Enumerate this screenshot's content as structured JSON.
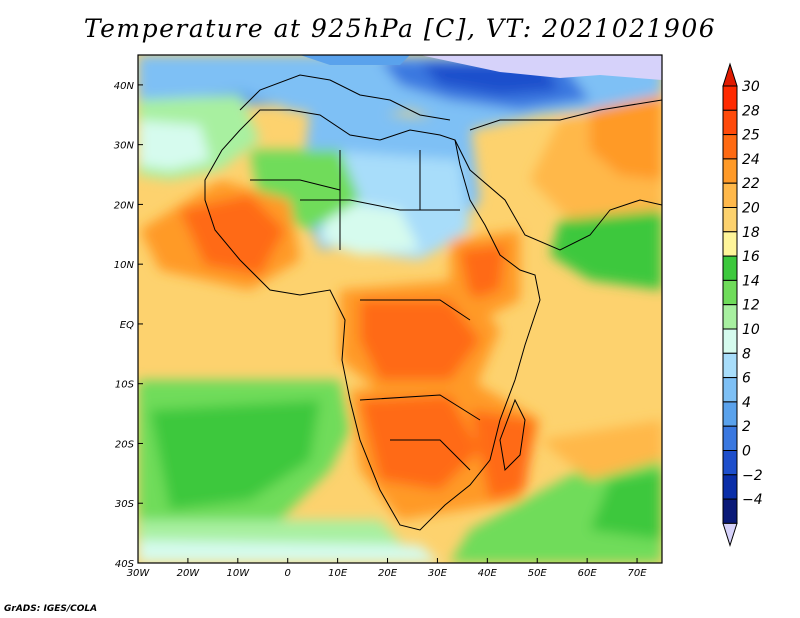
{
  "title": "Temperature at 925hPa [C], VT: 2021021906",
  "footer": "GrADS: IGES/COLA",
  "map": {
    "lon_range": [
      -30,
      75
    ],
    "lat_range": [
      -40,
      45
    ],
    "lon_ticks": [
      {
        "value": -30,
        "label": "30W"
      },
      {
        "value": -20,
        "label": "20W"
      },
      {
        "value": -10,
        "label": "10W"
      },
      {
        "value": 0,
        "label": "0"
      },
      {
        "value": 10,
        "label": "10E"
      },
      {
        "value": 20,
        "label": "20E"
      },
      {
        "value": 30,
        "label": "30E"
      },
      {
        "value": 40,
        "label": "40E"
      },
      {
        "value": 50,
        "label": "50E"
      },
      {
        "value": 60,
        "label": "60E"
      },
      {
        "value": 70,
        "label": "70E"
      }
    ],
    "lat_ticks": [
      {
        "value": 40,
        "label": "40N"
      },
      {
        "value": 30,
        "label": "30N"
      },
      {
        "value": 20,
        "label": "20N"
      },
      {
        "value": 10,
        "label": "10N"
      },
      {
        "value": 0,
        "label": "EQ"
      },
      {
        "value": -10,
        "label": "10S"
      },
      {
        "value": -20,
        "label": "20S"
      },
      {
        "value": -30,
        "label": "30S"
      },
      {
        "value": -40,
        "label": "40S"
      }
    ]
  },
  "colorbar": {
    "levels": [
      {
        "label": "30",
        "color": "#ff2a00"
      },
      {
        "label": "28",
        "color": "#ff4a0a"
      },
      {
        "label": "25",
        "color": "#ff6a12"
      },
      {
        "label": "24",
        "color": "#ff9a28"
      },
      {
        "label": "22",
        "color": "#ffb84a"
      },
      {
        "label": "20",
        "color": "#fdd26e"
      },
      {
        "label": "18",
        "color": "#fff59a"
      },
      {
        "label": "16",
        "color": "#3cc83c"
      },
      {
        "label": "14",
        "color": "#6fdc5a"
      },
      {
        "label": "12",
        "color": "#a8f0a0"
      },
      {
        "label": "10",
        "color": "#d6fbee"
      },
      {
        "label": "8",
        "color": "#a8ddfa"
      },
      {
        "label": "6",
        "color": "#7ec0f5"
      },
      {
        "label": "4",
        "color": "#5aa2ec"
      },
      {
        "label": "2",
        "color": "#3a78e0"
      },
      {
        "label": "0",
        "color": "#1e4fcc"
      },
      {
        "label": "−2",
        "color": "#0a2ea8"
      },
      {
        "label": "−4",
        "color": "#0a1a78"
      }
    ],
    "top_triangle_color": "#e01a00",
    "bottom_triangle_color": "#d6d2fa"
  },
  "colors": {
    "ocean_base": "#fdd26e",
    "cold_north": "#1e4fcc",
    "warm_land": "#ff6a12",
    "south_ocean": "#6fdc5a"
  }
}
